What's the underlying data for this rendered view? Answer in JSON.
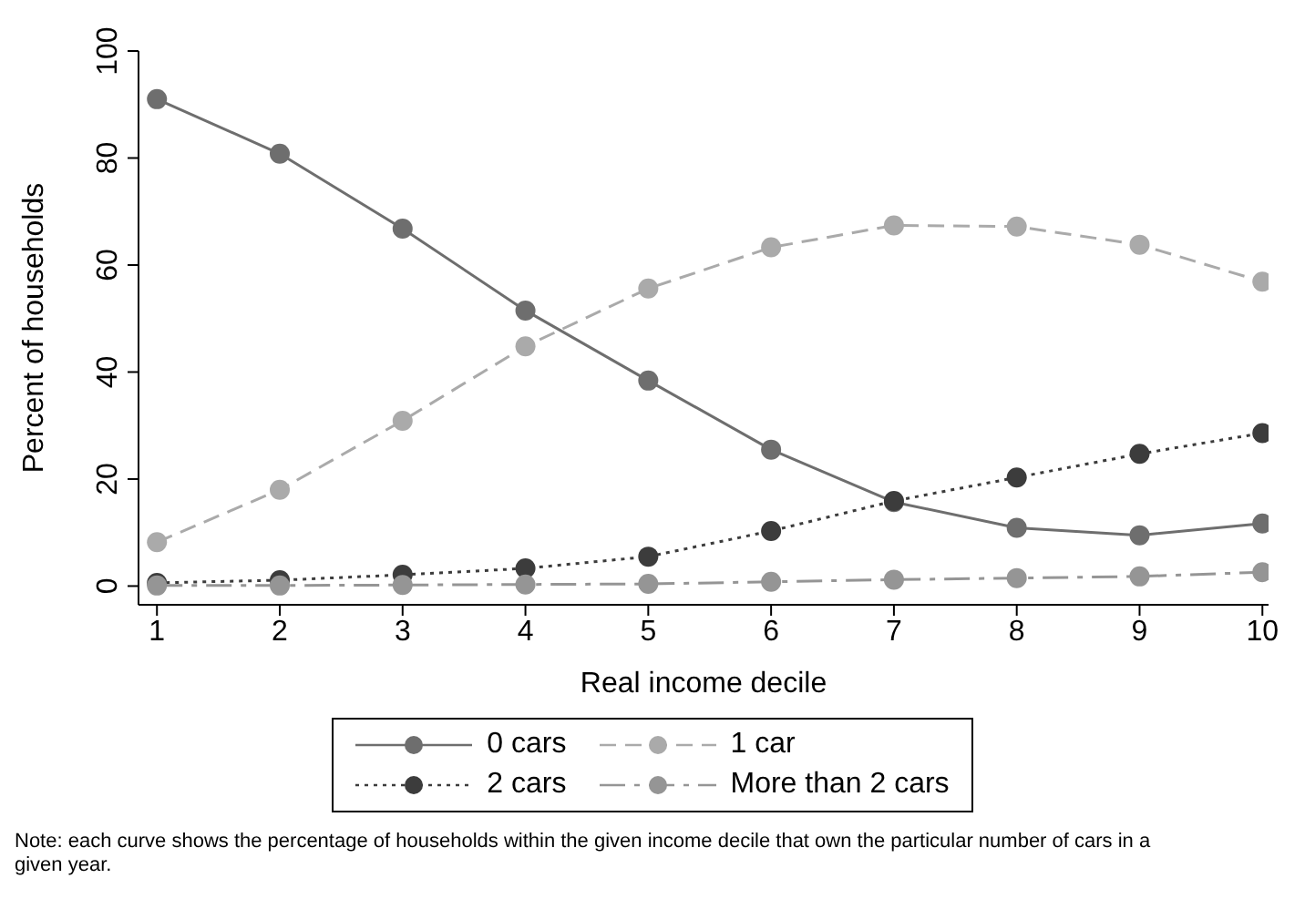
{
  "chart_data": {
    "type": "line",
    "xlabel": "Real income decile",
    "ylabel": "Percent of households",
    "x": [
      1,
      2,
      3,
      4,
      5,
      6,
      7,
      8,
      9,
      10
    ],
    "xlim": [
      0.85,
      10.05
    ],
    "xticks": [
      1,
      2,
      3,
      4,
      5,
      6,
      7,
      8,
      9,
      10
    ],
    "ylim": [
      -3.5,
      100
    ],
    "yticks": [
      0,
      20,
      40,
      60,
      80,
      100
    ],
    "series": [
      {
        "name": "0 cars",
        "color": "#6e6e6e",
        "line_style": "solid",
        "values": [
          91,
          80.8,
          66.8,
          51.5,
          38.4,
          25.5,
          15.7,
          10.9,
          9.5,
          11.7
        ]
      },
      {
        "name": "1 car",
        "color": "#aaaaaa",
        "line_style": "dashed",
        "values": [
          8.2,
          18,
          30.9,
          44.8,
          55.6,
          63.3,
          67.4,
          67.2,
          63.8,
          56.9
        ]
      },
      {
        "name": "2 cars",
        "color": "#3c3c3c",
        "line_style": "dotted",
        "values": [
          0.6,
          1.1,
          2.1,
          3.3,
          5.5,
          10.3,
          15.9,
          20.3,
          24.7,
          28.6
        ]
      },
      {
        "name": "More than 2 cars",
        "color": "#959595",
        "line_style": "dashdot",
        "values": [
          0.1,
          0.1,
          0.2,
          0.3,
          0.4,
          0.8,
          1.2,
          1.5,
          1.8,
          2.6
        ]
      }
    ],
    "marker": "circle",
    "grid": false,
    "legend": "bottom",
    "annotations": [
      "Note: each curve shows the percentage of households within the given income decile that own the particular number of cars in a given year."
    ]
  }
}
